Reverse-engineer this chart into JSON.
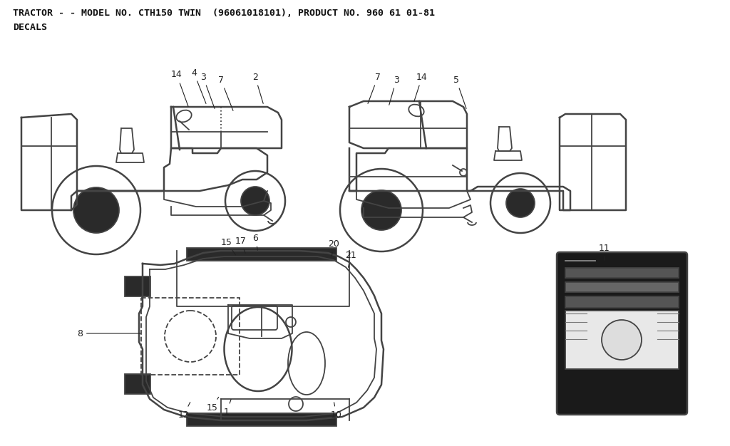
{
  "title_line1": "TRACTOR - - MODEL NO. CTH150 TWIN  (96061018101), PRODUCT NO. 960 61 01-81",
  "title_line2": "DECALS",
  "bg_color": "#ffffff",
  "line_color": "#444444",
  "dark_fill": "#2a2a2a",
  "mid_fill": "#888888",
  "label_color": "#222222",
  "label_fontsize": 9,
  "title_fontsize": 9.5,
  "figsize": [
    10.24,
    6.26
  ],
  "dpi": 100
}
